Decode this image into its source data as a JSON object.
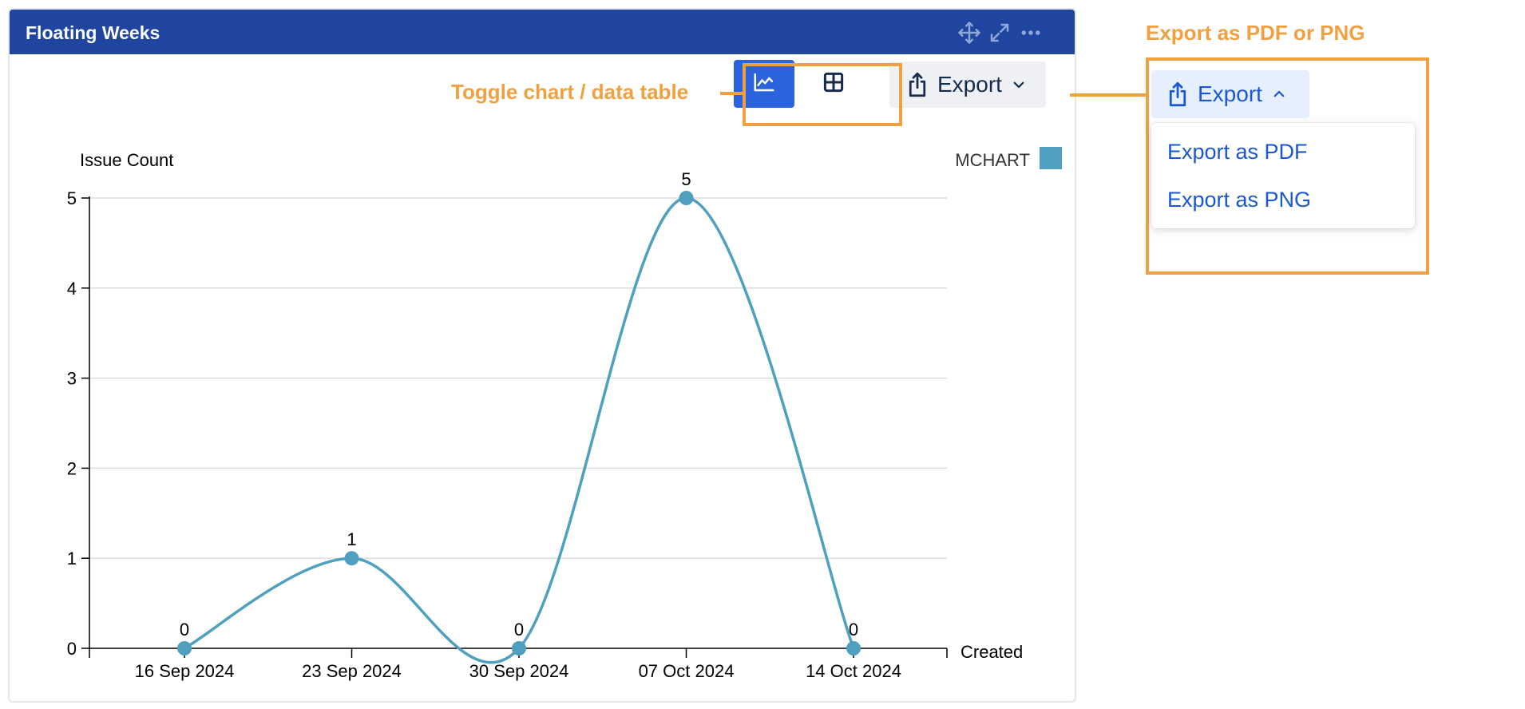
{
  "gadget": {
    "title": "Floating Weeks",
    "header_icons": [
      "move-icon",
      "expand-icon",
      "more-icon"
    ]
  },
  "toolbar": {
    "chart_toggle_icon": "line-chart-icon",
    "table_toggle_icon": "grid-table-icon",
    "export_label": "Export",
    "export_icon": "share-upload-icon",
    "export_chevron_icon": "chevron-down-icon"
  },
  "annotations": {
    "toggle_label": "Toggle chart / data table",
    "export_label": "Export as PDF or PNG",
    "color": "#f0a040"
  },
  "export_menu": {
    "button_label": "Export",
    "button_chevron_icon": "chevron-up-icon",
    "items": [
      "Export as PDF",
      "Export as PNG"
    ]
  },
  "colors": {
    "header": "#1f45a1",
    "primary": "#2a63dd",
    "series": "#4fa0bf",
    "link": "#1a57d2"
  },
  "chart_data": {
    "type": "line",
    "ylabel": "Issue Count",
    "xlabel": "Created",
    "categories": [
      "16 Sep 2024",
      "23 Sep 2024",
      "30 Sep 2024",
      "07 Oct 2024",
      "14 Oct 2024"
    ],
    "series": [
      {
        "name": "MCHART",
        "values": [
          0,
          1,
          0,
          5,
          0
        ],
        "color": "#4fa0bf"
      }
    ],
    "ylim": [
      0,
      5
    ],
    "yticks": [
      0,
      1,
      2,
      3,
      4,
      5
    ],
    "grid": true,
    "smooth": true,
    "data_labels": true,
    "legend_position": "top-right"
  }
}
